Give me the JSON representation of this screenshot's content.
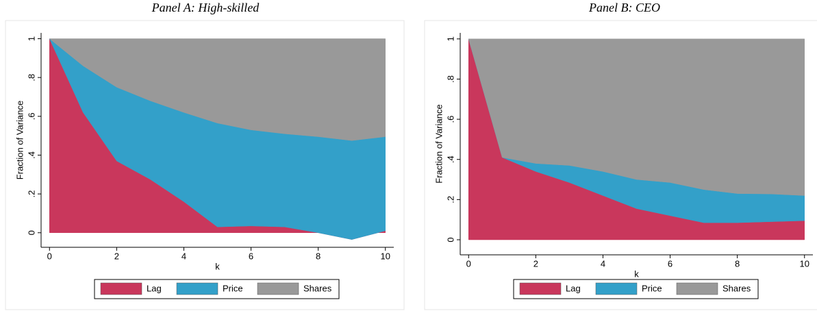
{
  "chart_data": [
    {
      "type": "area",
      "title": "Panel A: High-skilled",
      "x_label": "k",
      "y_label": "Fraction of Variance",
      "x": [
        0,
        1,
        2,
        3,
        4,
        5,
        6,
        7,
        8,
        9,
        10
      ],
      "series": [
        {
          "name": "Lag",
          "color": "#c9375c",
          "values": [
            1,
            0.62,
            0.37,
            0.275,
            0.16,
            0.03,
            0.035,
            0.03,
            0,
            -0.035,
            0.01
          ]
        },
        {
          "name": "Price",
          "color": "#33a0c9",
          "values": [
            0,
            0.24,
            0.38,
            0.405,
            0.46,
            0.535,
            0.495,
            0.48,
            0.495,
            0.51,
            0.485
          ]
        },
        {
          "name": "Shares",
          "color": "#999999",
          "values": [
            0,
            0.14,
            0.25,
            0.32,
            0.38,
            0.435,
            0.47,
            0.49,
            0.505,
            0.525,
            0.505
          ]
        }
      ],
      "xlim": [
        -0.25,
        10.25
      ],
      "xticks": [
        0,
        2,
        4,
        6,
        8,
        10
      ],
      "ylim": [
        -0.075,
        1.03
      ],
      "yticks": [
        0,
        {
          "value": 0.2,
          "label": ".2"
        },
        {
          "value": 0.4,
          "label": ".4"
        },
        {
          "value": 0.6,
          "label": ".6"
        },
        {
          "value": 0.8,
          "label": ".8"
        },
        1
      ]
    },
    {
      "type": "area",
      "title": "Panel B: CEO",
      "x_label": "k",
      "y_label": "Fraction of Variance",
      "x": [
        0,
        1,
        2,
        3,
        4,
        5,
        6,
        7,
        8,
        9,
        10
      ],
      "series": [
        {
          "name": "Lag",
          "color": "#c9375c",
          "values": [
            1,
            0.41,
            0.34,
            0.285,
            0.22,
            0.155,
            0.12,
            0.085,
            0.085,
            0.09,
            0.095
          ]
        },
        {
          "name": "Price",
          "color": "#33a0c9",
          "values": [
            0,
            0,
            0.04,
            0.085,
            0.12,
            0.145,
            0.165,
            0.165,
            0.145,
            0.138,
            0.125
          ]
        },
        {
          "name": "Shares",
          "color": "#999999",
          "values": [
            0,
            0.59,
            0.62,
            0.63,
            0.66,
            0.7,
            0.715,
            0.75,
            0.77,
            0.772,
            0.78
          ]
        }
      ],
      "xlim": [
        -0.25,
        10.25
      ],
      "xticks": [
        0,
        2,
        4,
        6,
        8,
        10
      ],
      "ylim": [
        -0.075,
        1.03
      ],
      "yticks": [
        0,
        {
          "value": 0.2,
          "label": ".2"
        },
        {
          "value": 0.4,
          "label": ".4"
        },
        {
          "value": 0.6,
          "label": ".6"
        },
        {
          "value": 0.8,
          "label": ".8"
        },
        1
      ]
    }
  ]
}
